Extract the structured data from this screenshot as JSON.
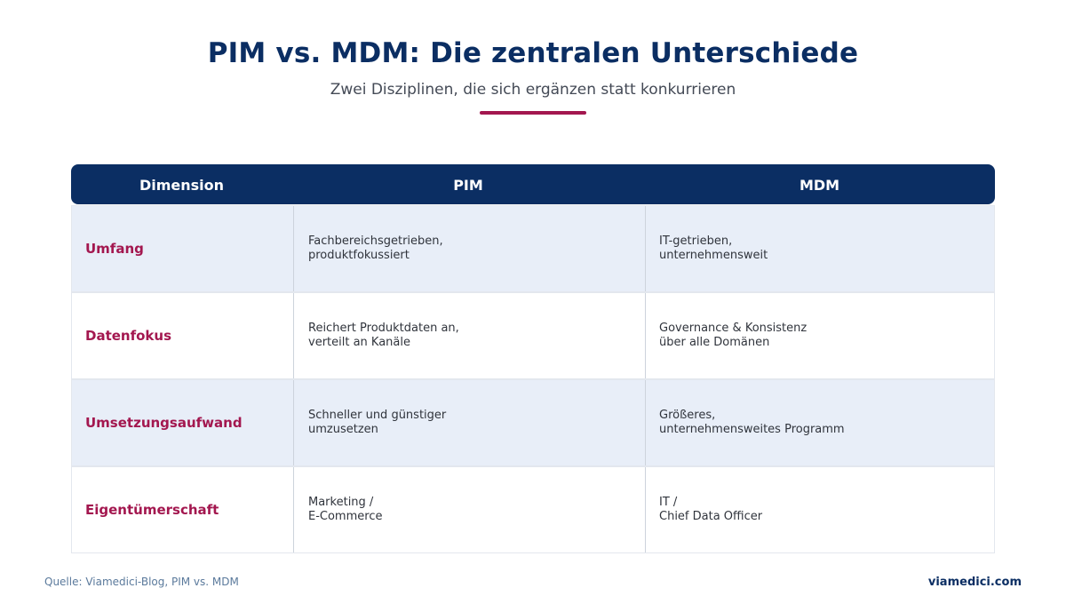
{
  "title": "PIM vs. MDM: Die zentralen Unterschiede",
  "subtitle": "Zwei Disziplinen, die sich ergänzen statt konkurrieren",
  "colors": {
    "header_bg": "#0b2e63",
    "accent": "#a3174f",
    "row_shaded": "#e8eef8"
  },
  "table": {
    "headers": [
      "Dimension",
      "PIM",
      "MDM"
    ],
    "rows": [
      {
        "dimension": "Umfang",
        "pim": [
          "Fachbereichsgetrieben,",
          "produktfokussiert"
        ],
        "mdm": [
          "IT-getrieben,",
          "unternehmensweit"
        ]
      },
      {
        "dimension": "Datenfokus",
        "pim": [
          "Reichert Produktdaten an,",
          "verteilt an Kanäle"
        ],
        "mdm": [
          "Governance & Konsistenz",
          "über alle Domänen"
        ]
      },
      {
        "dimension": "Umsetzungsaufwand",
        "pim": [
          "Schneller und günstiger",
          "umzusetzen"
        ],
        "mdm": [
          "Größeres,",
          "unternehmensweites Programm"
        ]
      },
      {
        "dimension": "Eigentümerschaft",
        "pim": [
          "Marketing /",
          "E-Commerce"
        ],
        "mdm": [
          "IT /",
          "Chief Data Officer"
        ]
      }
    ]
  },
  "footer": {
    "source": "Quelle: Viamedici-Blog, PIM vs. MDM",
    "brand": "viamedici.com"
  }
}
